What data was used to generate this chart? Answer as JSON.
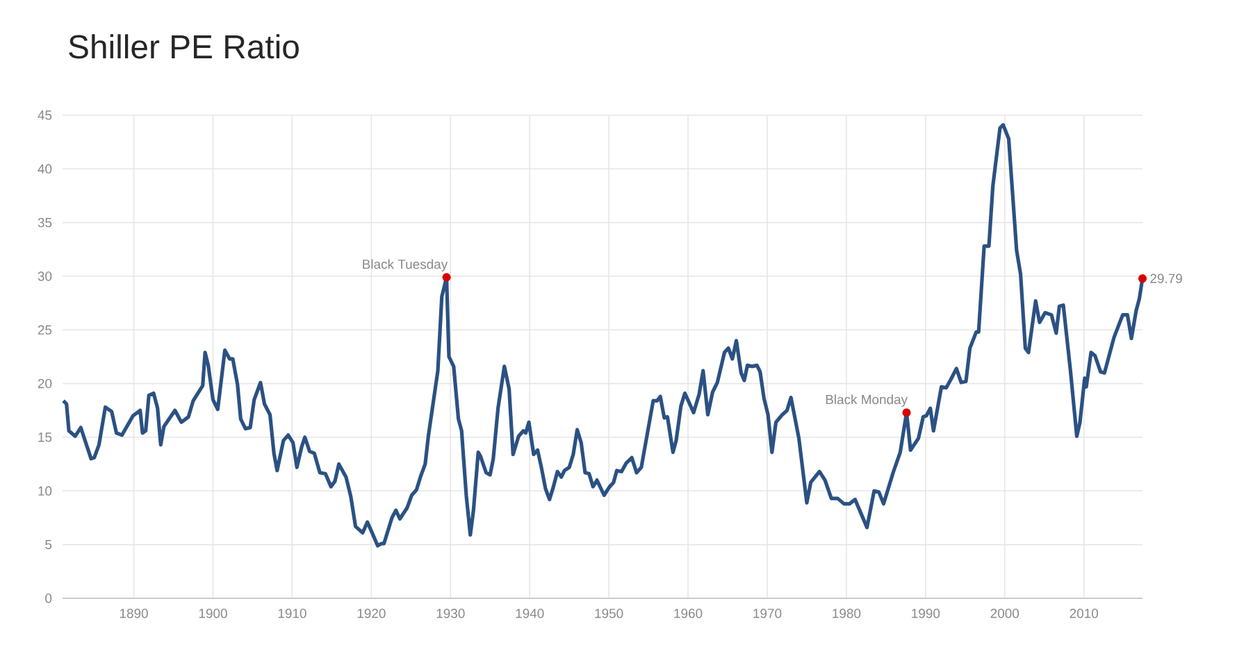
{
  "chart_data": {
    "type": "line",
    "title": "Shiller PE Ratio",
    "color": "#2b5183",
    "grid": true,
    "marker": "none",
    "line_style": "solid",
    "x": [
      1881.1,
      1881.5,
      1881.8,
      1882.6,
      1883.3,
      1884.6,
      1885.0,
      1885.6,
      1886.4,
      1887.2,
      1887.8,
      1888.5,
      1889.9,
      1890.8,
      1891.1,
      1891.5,
      1891.9,
      1892.5,
      1893.0,
      1893.4,
      1893.8,
      1895.2,
      1896.0,
      1896.9,
      1897.5,
      1898.7,
      1899.0,
      1899.4,
      1900.0,
      1900.6,
      1901.5,
      1902.1,
      1902.5,
      1903.1,
      1903.5,
      1904.1,
      1904.7,
      1905.2,
      1906.0,
      1906.5,
      1907.2,
      1907.7,
      1908.1,
      1908.9,
      1909.5,
      1910.1,
      1910.6,
      1911.2,
      1911.6,
      1912.2,
      1912.8,
      1913.5,
      1914.2,
      1914.9,
      1915.4,
      1915.9,
      1916.8,
      1917.4,
      1918.0,
      1918.9,
      1919.5,
      1920.1,
      1920.8,
      1921.3,
      1921.6,
      1922.6,
      1923.1,
      1923.6,
      1924.5,
      1925.1,
      1925.7,
      1926.2,
      1926.8,
      1927.2,
      1928.4,
      1928.9,
      1929.5,
      1929.8,
      1930.4,
      1931.0,
      1931.4,
      1932.0,
      1932.5,
      1932.9,
      1933.5,
      1933.8,
      1934.5,
      1935.0,
      1935.4,
      1936.0,
      1936.8,
      1937.4,
      1937.9,
      1938.6,
      1939.2,
      1939.5,
      1939.9,
      1940.5,
      1941.0,
      1941.5,
      1942.0,
      1942.5,
      1943.0,
      1943.5,
      1944.0,
      1944.4,
      1945.0,
      1945.5,
      1946.0,
      1946.5,
      1947.0,
      1947.5,
      1948.0,
      1948.5,
      1949.4,
      1950.1,
      1950.6,
      1951.0,
      1951.6,
      1952.2,
      1952.9,
      1953.5,
      1954.1,
      1954.8,
      1955.6,
      1956.1,
      1956.5,
      1957.0,
      1957.4,
      1958.1,
      1958.5,
      1959.1,
      1959.6,
      1960.7,
      1961.4,
      1961.9,
      1962.5,
      1963.1,
      1963.7,
      1964.6,
      1965.1,
      1965.6,
      1966.1,
      1966.7,
      1967.1,
      1967.5,
      1968.1,
      1968.7,
      1969.1,
      1969.6,
      1970.1,
      1970.6,
      1971.1,
      1971.9,
      1972.5,
      1973.0,
      1974.0,
      1975.0,
      1975.5,
      1976.6,
      1977.3,
      1978.1,
      1978.9,
      1979.7,
      1980.4,
      1981.1,
      1982.6,
      1983.5,
      1984.1,
      1984.7,
      1985.9,
      1986.8,
      1987.6,
      1988.1,
      1989.1,
      1989.7,
      1990.1,
      1990.6,
      1991.0,
      1992.0,
      1992.6,
      1993.2,
      1993.9,
      1994.5,
      1995.1,
      1995.6,
      1996.4,
      1996.7,
      1997.4,
      1998.0,
      1998.5,
      1999.4,
      1999.8,
      2000.5,
      2001.5,
      2002.0,
      2002.6,
      2003.0,
      2003.9,
      2004.4,
      2005.1,
      2005.9,
      2006.5,
      2006.9,
      2007.4,
      2008.3,
      2009.1,
      2009.5,
      2010.1,
      2010.3,
      2010.9,
      2011.4,
      2012.1,
      2012.6,
      2013.8,
      2014.9,
      2015.5,
      2016.0,
      2016.6,
      2017.0,
      2017.4
    ],
    "values": [
      18.4,
      18.1,
      15.6,
      15.1,
      15.9,
      13.0,
      13.1,
      14.3,
      17.8,
      17.4,
      15.4,
      15.2,
      17.0,
      17.5,
      15.4,
      15.6,
      18.9,
      19.1,
      17.7,
      14.3,
      16.0,
      17.5,
      16.4,
      16.9,
      18.4,
      19.8,
      22.9,
      21.7,
      18.5,
      17.6,
      23.1,
      22.3,
      22.3,
      19.9,
      16.7,
      15.8,
      15.9,
      18.5,
      20.1,
      18.1,
      17.1,
      13.5,
      11.9,
      14.7,
      15.2,
      14.5,
      12.2,
      14.1,
      15.0,
      13.7,
      13.5,
      11.7,
      11.6,
      10.4,
      10.9,
      12.5,
      11.3,
      9.5,
      6.7,
      6.1,
      7.1,
      6.1,
      4.9,
      5.1,
      5.1,
      7.5,
      8.2,
      7.4,
      8.4,
      9.6,
      10.1,
      11.3,
      12.5,
      15.1,
      21.2,
      28.1,
      29.9,
      22.5,
      21.6,
      16.7,
      15.6,
      9.5,
      5.9,
      8.2,
      13.6,
      13.2,
      11.7,
      11.5,
      13.0,
      17.7,
      21.6,
      19.5,
      13.4,
      15.1,
      15.6,
      15.4,
      16.4,
      13.4,
      13.8,
      12.1,
      10.2,
      9.2,
      10.4,
      11.8,
      11.3,
      11.9,
      12.2,
      13.4,
      15.7,
      14.5,
      11.7,
      11.6,
      10.4,
      11.0,
      9.6,
      10.4,
      10.8,
      11.9,
      11.8,
      12.6,
      13.1,
      11.7,
      12.2,
      15.1,
      18.4,
      18.4,
      18.8,
      16.8,
      16.9,
      13.6,
      14.7,
      17.9,
      19.1,
      17.3,
      19.0,
      21.2,
      17.1,
      19.2,
      20.1,
      22.9,
      23.3,
      22.3,
      24.0,
      21.0,
      20.3,
      21.7,
      21.6,
      21.7,
      21.1,
      18.6,
      17.1,
      13.6,
      16.4,
      17.1,
      17.5,
      18.7,
      14.9,
      8.9,
      10.8,
      11.8,
      11.0,
      9.3,
      9.3,
      8.8,
      8.8,
      9.2,
      6.6,
      10.0,
      9.9,
      8.8,
      11.7,
      13.6,
      17.3,
      13.8,
      14.9,
      16.9,
      17.0,
      17.7,
      15.6,
      19.7,
      19.6,
      20.4,
      21.4,
      20.1,
      20.2,
      23.3,
      24.8,
      24.8,
      32.8,
      32.8,
      38.4,
      43.8,
      44.1,
      42.8,
      32.4,
      30.2,
      23.3,
      22.9,
      27.7,
      25.7,
      26.6,
      26.4,
      24.7,
      27.2,
      27.3,
      21.2,
      15.1,
      16.4,
      20.5,
      19.7,
      22.9,
      22.6,
      21.1,
      21.0,
      24.3,
      26.4,
      26.4,
      24.2,
      26.8,
      27.9,
      29.79
    ],
    "xlim": [
      1881,
      2017.4
    ],
    "ylim": [
      0,
      45
    ],
    "xticks": [
      1890,
      1900,
      1910,
      1920,
      1930,
      1940,
      1950,
      1960,
      1970,
      1980,
      1990,
      2000,
      2010
    ],
    "yticks": [
      0,
      5,
      10,
      15,
      20,
      25,
      30,
      35,
      40,
      45
    ],
    "annotations": [
      {
        "text": "Black Tuesday",
        "x": 1929.5,
        "y": 29.9
      },
      {
        "text": "Black Monday",
        "x": 1987.6,
        "y": 17.3
      },
      {
        "text": "29.79",
        "x": 2017.4,
        "y": 29.79
      }
    ]
  }
}
